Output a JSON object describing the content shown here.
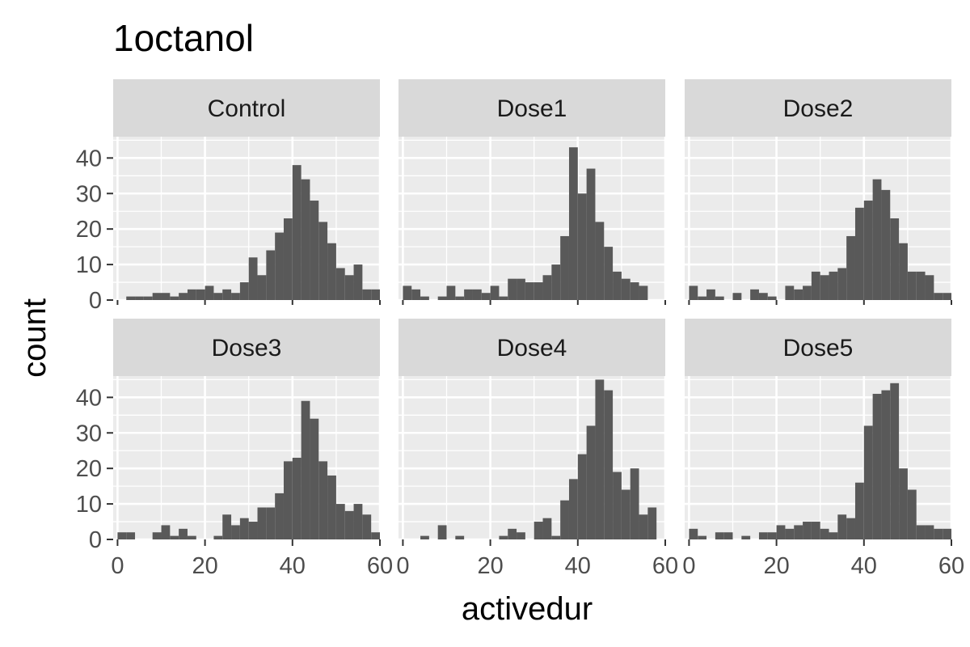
{
  "chart_data": {
    "type": "bar",
    "title": "1octanol",
    "xlabel": "activedur",
    "ylabel": "count",
    "xlim": [
      -1,
      60
    ],
    "ylim": [
      0,
      46
    ],
    "x_ticks": [
      "0",
      "20",
      "40",
      "60"
    ],
    "y_ticks": [
      "0",
      "10",
      "20",
      "30",
      "40"
    ],
    "grid": true,
    "bin_width": 2,
    "bin_starts": [
      0,
      2,
      4,
      6,
      8,
      10,
      12,
      14,
      16,
      18,
      20,
      22,
      24,
      26,
      28,
      30,
      32,
      34,
      36,
      38,
      40,
      42,
      44,
      46,
      48,
      50,
      52,
      54,
      56,
      58
    ],
    "panels": [
      {
        "name": "Control",
        "values": [
          0,
          1,
          1,
          1,
          2,
          2,
          1,
          2,
          3,
          3,
          4,
          2,
          3,
          2,
          5,
          12,
          7,
          14,
          19,
          23,
          38,
          34,
          28,
          22,
          16,
          9,
          7,
          10,
          3,
          3
        ]
      },
      {
        "name": "Dose1",
        "values": [
          4,
          3,
          1,
          0,
          1,
          4,
          1,
          3,
          3,
          2,
          4,
          1,
          6,
          6,
          5,
          5,
          7,
          10,
          18,
          43,
          30,
          37,
          22,
          15,
          8,
          6,
          5,
          4,
          0,
          0
        ]
      },
      {
        "name": "Dose2",
        "values": [
          4,
          1,
          3,
          1,
          0,
          2,
          0,
          3,
          2,
          1,
          0,
          4,
          3,
          4,
          8,
          7,
          8,
          9,
          18,
          26,
          28,
          34,
          31,
          23,
          16,
          8,
          8,
          7,
          2,
          2
        ]
      },
      {
        "name": "Dose3",
        "values": [
          2,
          2,
          0,
          0,
          2,
          4,
          1,
          3,
          1,
          0,
          0,
          1,
          7,
          4,
          6,
          5,
          9,
          9,
          13,
          22,
          23,
          39,
          34,
          22,
          18,
          10,
          8,
          10,
          7,
          2
        ]
      },
      {
        "name": "Dose4",
        "values": [
          0,
          0,
          1,
          0,
          4,
          0,
          1,
          0,
          0,
          0,
          0,
          1,
          3,
          2,
          0,
          5,
          6,
          1,
          11,
          17,
          24,
          32,
          45,
          42,
          19,
          14,
          20,
          7,
          9,
          0
        ]
      },
      {
        "name": "Dose5",
        "values": [
          3,
          1,
          0,
          2,
          2,
          0,
          1,
          0,
          2,
          2,
          4,
          3,
          4,
          5,
          5,
          3,
          2,
          7,
          6,
          16,
          32,
          41,
          42,
          44,
          20,
          14,
          4,
          4,
          3,
          3
        ]
      }
    ]
  },
  "colors": {
    "bar": "#595959",
    "panel_background": "#ebebeb",
    "grid": "#ffffff",
    "strip_background": "#d9d9d9",
    "tick_mark": "#333333"
  }
}
